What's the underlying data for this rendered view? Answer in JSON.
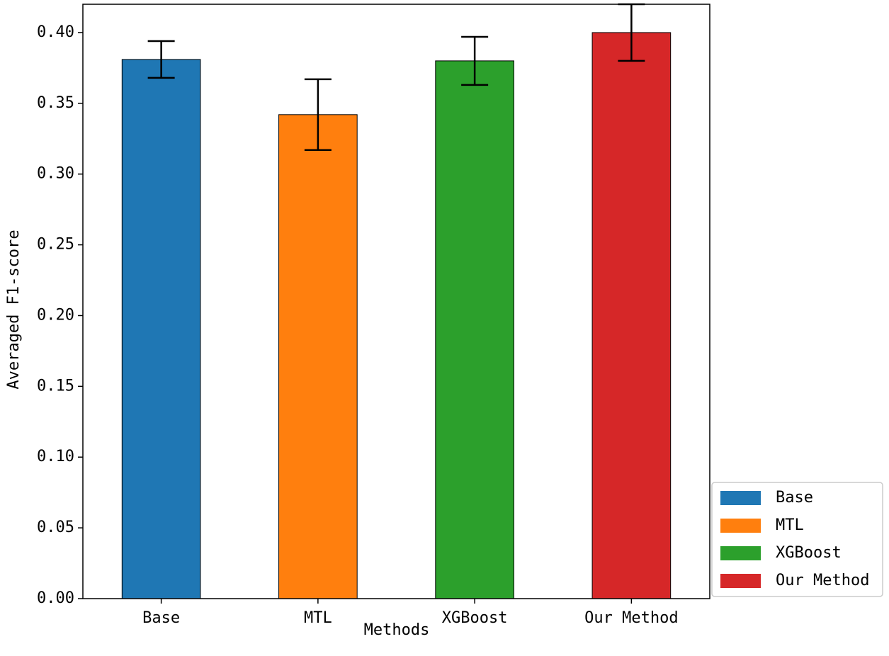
{
  "chart_data": {
    "type": "bar",
    "title": "",
    "xlabel": "Methods",
    "ylabel": "Averaged F1-score",
    "categories": [
      "Base",
      "MTL",
      "XGBoost",
      "Our Method"
    ],
    "values": [
      0.381,
      0.342,
      0.38,
      0.4
    ],
    "errors": [
      0.013,
      0.025,
      0.017,
      0.02
    ],
    "colors": [
      "#1f77b4",
      "#ff7f0e",
      "#2ca02c",
      "#d62728"
    ],
    "ylim": [
      0,
      0.42
    ],
    "yticks": [
      "0.00",
      "0.05",
      "0.10",
      "0.15",
      "0.20",
      "0.25",
      "0.30",
      "0.35",
      "0.40"
    ],
    "grid": false,
    "legend": {
      "position": "lower-right-outside",
      "entries": [
        "Base",
        "MTL",
        "XGBoost",
        "Our Method"
      ]
    }
  }
}
